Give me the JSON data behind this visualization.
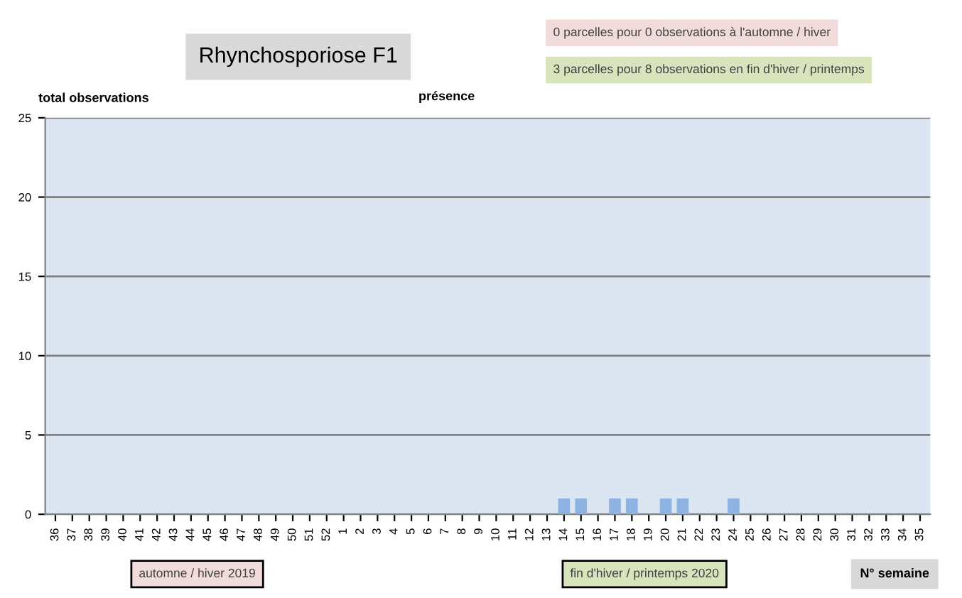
{
  "chart_data": {
    "type": "bar",
    "title": "Rhynchosporiose F1",
    "ylabel": "total observations",
    "subtitle": "présence",
    "xlabel": "N° semaine",
    "categories": [
      "36",
      "37",
      "38",
      "39",
      "40",
      "41",
      "42",
      "43",
      "44",
      "45",
      "46",
      "47",
      "48",
      "49",
      "50",
      "51",
      "52",
      "1",
      "2",
      "3",
      "4",
      "5",
      "6",
      "7",
      "8",
      "9",
      "10",
      "11",
      "12",
      "13",
      "14",
      "15",
      "16",
      "17",
      "18",
      "19",
      "20",
      "21",
      "22",
      "23",
      "24",
      "25",
      "26",
      "27",
      "28",
      "29",
      "30",
      "31",
      "32",
      "33",
      "34",
      "35"
    ],
    "values": [
      0,
      0,
      0,
      0,
      0,
      0,
      0,
      0,
      0,
      0,
      0,
      0,
      0,
      0,
      0,
      0,
      0,
      0,
      0,
      0,
      0,
      0,
      0,
      0,
      0,
      0,
      0,
      0,
      0,
      0,
      1,
      1,
      0,
      1,
      1,
      0,
      1,
      1,
      0,
      0,
      1,
      0,
      0,
      0,
      0,
      0,
      0,
      0,
      0,
      0,
      0,
      0
    ],
    "color": "#8db3e2",
    "ylim": [
      0,
      25
    ],
    "yticks": [
      0,
      5,
      10,
      15,
      20,
      25
    ],
    "grid": "y",
    "legend": false,
    "annotations": [
      "0 parcelles pour 0 observations à l'automne / hiver",
      "3 parcelles pour 8 observations en fin d'hiver / printemps",
      "automne / hiver 2019",
      "fin d'hiver / printemps 2020"
    ]
  }
}
